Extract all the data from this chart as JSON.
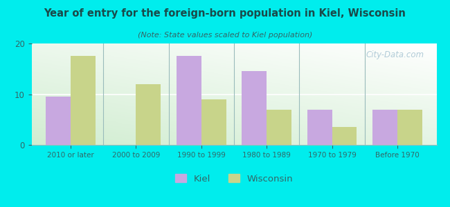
{
  "title": "Year of entry for the foreign-born population in Kiel, Wisconsin",
  "subtitle": "(Note: State values scaled to Kiel population)",
  "categories": [
    "2010 or later",
    "2000 to 2009",
    "1990 to 1999",
    "1980 to 1989",
    "1970 to 1979",
    "Before 1970"
  ],
  "kiel_values": [
    9.5,
    0,
    17.5,
    14.5,
    7.0,
    7.0
  ],
  "wisconsin_values": [
    17.5,
    12.0,
    9.0,
    7.0,
    3.5,
    7.0
  ],
  "kiel_color": "#c8a8e0",
  "wisconsin_color": "#c8d48a",
  "background_outer": "#00eded",
  "ylim": [
    0,
    20
  ],
  "yticks": [
    0,
    10,
    20
  ],
  "bar_width": 0.38,
  "watermark": "City-Data.com",
  "legend_kiel": "Kiel",
  "legend_wisconsin": "Wisconsin",
  "title_color": "#1a4a4a",
  "subtitle_color": "#336666",
  "tick_color": "#336666",
  "axis_label_color": "#336666"
}
